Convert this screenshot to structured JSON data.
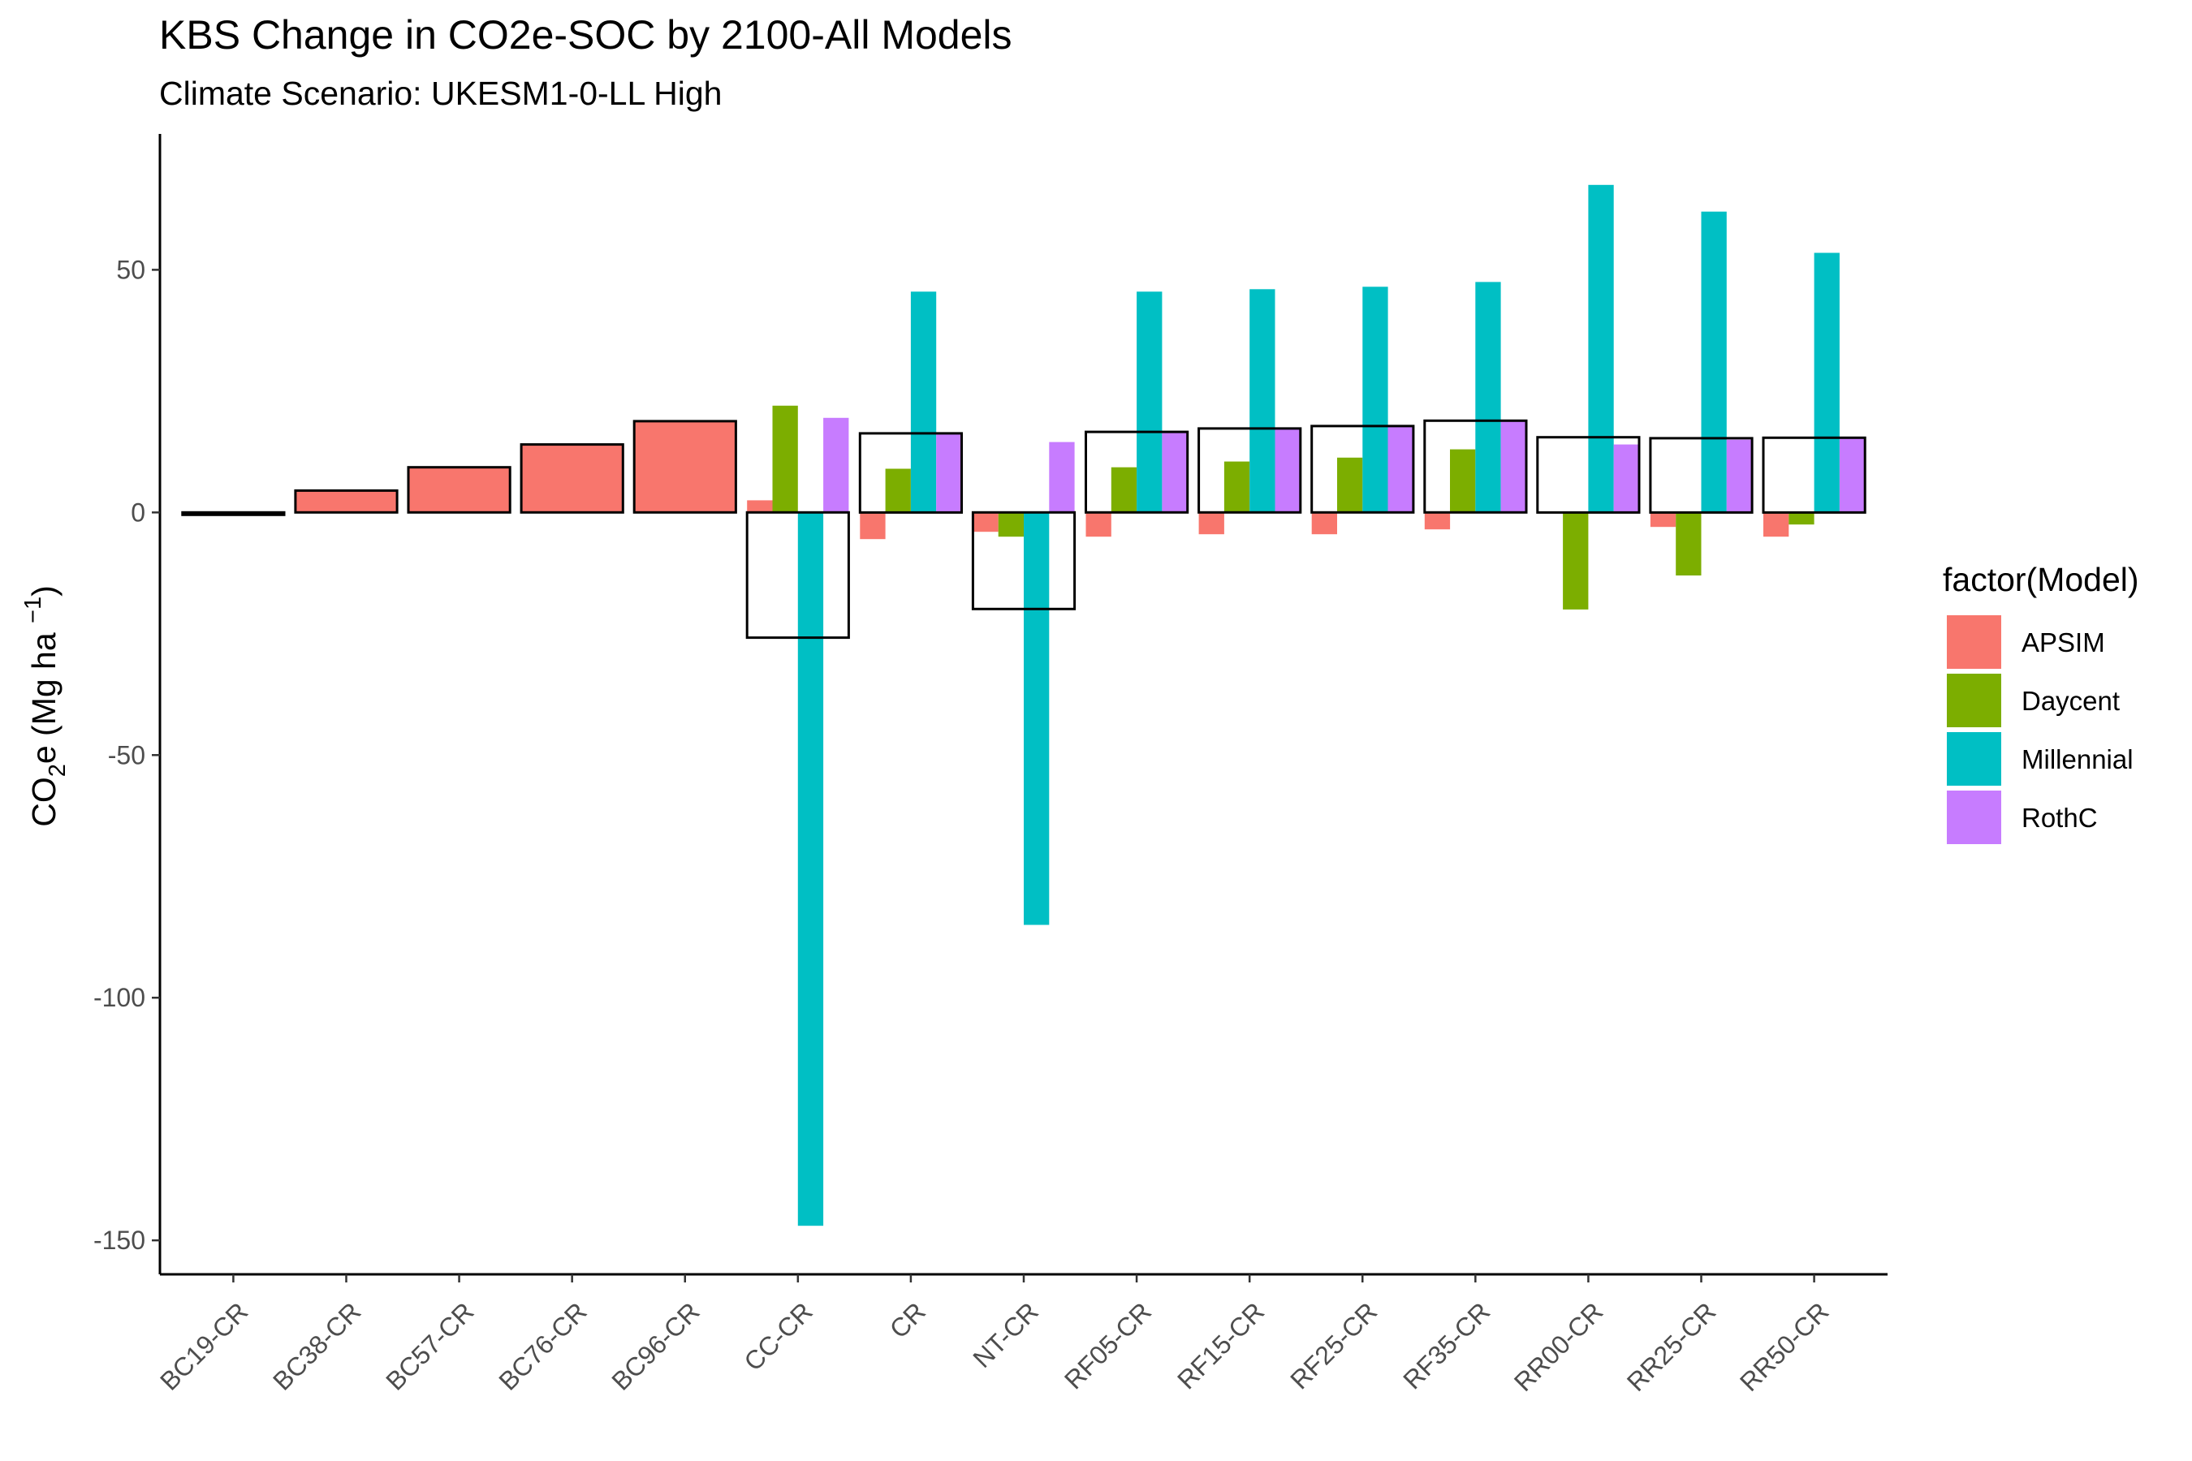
{
  "chart_data": {
    "type": "bar",
    "title": "KBS Change in CO2e-SOC by 2100-All Models",
    "subtitle": "Climate Scenario: UKESM1-0-LL High",
    "ylabel": "CO2e (Mg ha -1)",
    "ylabel_parts": {
      "a": "CO",
      "sub": "2",
      "b": "e (Mg ha ",
      "sup": "−1",
      "c": ")"
    },
    "xlabel": "",
    "ylim": [
      -157,
      78
    ],
    "yticks": [
      50,
      0,
      -50,
      -100,
      -150
    ],
    "categories": [
      "BC19-CR",
      "BC38-CR",
      "BC57-CR",
      "BC76-CR",
      "BC96-CR",
      "CC-CR",
      "CR",
      "NT-CR",
      "RF05-CR",
      "RF15-CR",
      "RF25-CR",
      "RF35-CR",
      "RR00-CR",
      "RR25-CR",
      "RR50-CR"
    ],
    "legend_title": "factor(Model)",
    "legend_position": "right",
    "grid": false,
    "series": [
      {
        "name": "APSIM",
        "color": "#F8766D",
        "values": [
          -0.5,
          4.5,
          9.3,
          14.0,
          18.8,
          2.5,
          -5.5,
          -4.0,
          -5.0,
          -4.5,
          -4.5,
          -3.5,
          0,
          -3.0,
          -5.0
        ]
      },
      {
        "name": "Daycent",
        "color": "#7CAE00",
        "values": [
          null,
          null,
          null,
          null,
          null,
          22.0,
          9.0,
          -5.0,
          9.3,
          10.5,
          11.3,
          13.0,
          -20.0,
          -13.0,
          -2.5
        ]
      },
      {
        "name": "Millennial",
        "color": "#00BFC4",
        "values": [
          null,
          null,
          null,
          null,
          null,
          -147.0,
          45.5,
          -85.0,
          45.5,
          46.0,
          46.5,
          47.5,
          67.5,
          62.0,
          53.5
        ]
      },
      {
        "name": "RothC",
        "color": "#C77CFF",
        "values": [
          null,
          null,
          null,
          null,
          null,
          19.5,
          16.3,
          14.5,
          16.7,
          17.2,
          17.7,
          18.7,
          14.0,
          15.0,
          15.5
        ]
      }
    ],
    "ensemble_mean": {
      "label": "mean",
      "values": [
        -0.5,
        4.5,
        9.3,
        14.0,
        18.8,
        -25.8,
        16.3,
        -19.9,
        16.6,
        17.3,
        17.8,
        18.9,
        15.5,
        15.3,
        15.4
      ]
    }
  }
}
